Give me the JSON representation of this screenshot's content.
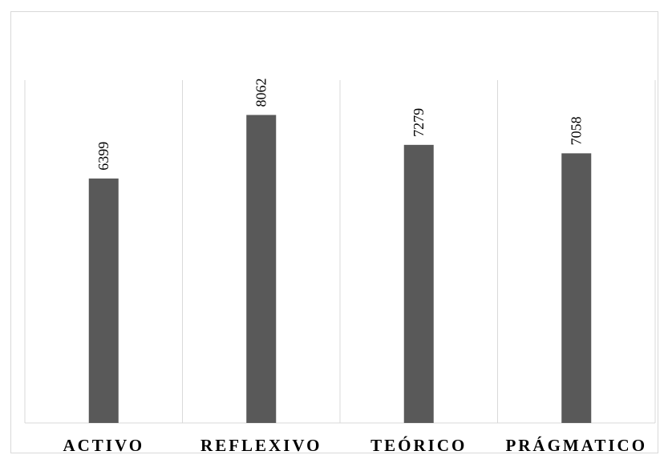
{
  "chart_data": {
    "type": "bar",
    "title": "",
    "xlabel": "",
    "ylabel": "",
    "categories": [
      "ACTIVO",
      "REFLEXIVO",
      "TEÓRICO",
      "PRÁGMATICO"
    ],
    "values": [
      6399,
      8062,
      7279,
      7058
    ],
    "data_labels": [
      "6399",
      "8062",
      "7279",
      "7058"
    ],
    "ylim": [
      0,
      8974
    ],
    "grid": "vertical category separators",
    "legend": "none",
    "colors": {
      "bar": "#595959",
      "gridline": "#d9d9d9",
      "text": "#000000",
      "frame": "#d9d9d9"
    }
  }
}
